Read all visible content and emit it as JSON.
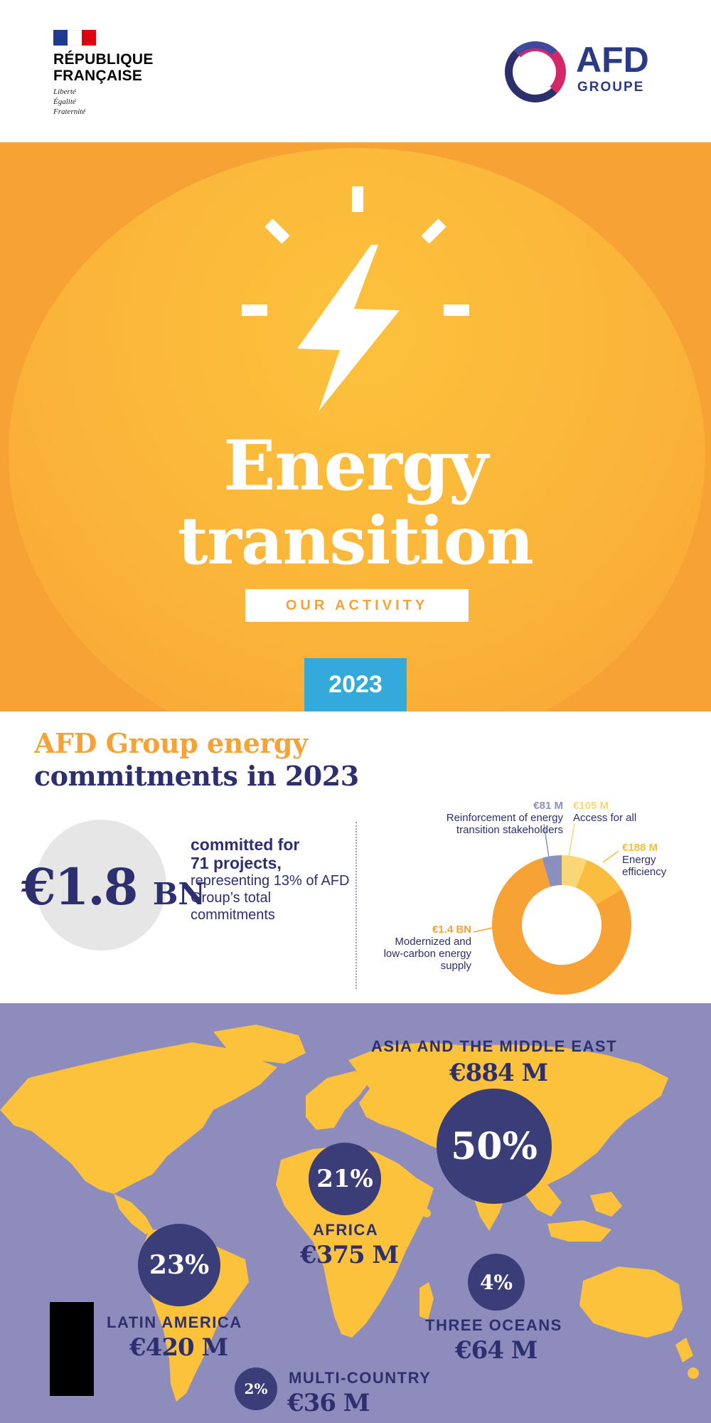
{
  "header": {
    "gov_name_line1": "RÉPUBLIQUE",
    "gov_name_line2": "FRANÇAISE",
    "motto": [
      "Liberté",
      "Égalité",
      "Fraternité"
    ],
    "afd_logo": "AFD",
    "afd_subtitle": "GROUPE"
  },
  "hero": {
    "icon": "lightning-bolt-icon",
    "title_line1": "Energy",
    "title_line2": "transition",
    "subtitle": "OUR ACTIVITY",
    "year": "2023"
  },
  "commitments": {
    "title_line1": "AFD Group energy",
    "title_line2": "commitments in 2023",
    "total_value": "€1.8",
    "total_unit": "BN",
    "desc_bold_1": "committed for",
    "desc_bold_2": "71 projects,",
    "desc_rest": "representing 13% of AFD Group’s total commitments",
    "donut_center_value": "€1.8",
    "donut_center_unit": "BN",
    "breakdown": [
      {
        "value": "€81 M",
        "label": "Reinforcement of energy transition stakeholders",
        "amount_m": 81,
        "color": "#8a8fbf"
      },
      {
        "value": "€105 M",
        "label": "Access for all",
        "amount_m": 105,
        "color": "#f9d776"
      },
      {
        "value": "€188 M",
        "label": "Energy efficiency",
        "amount_m": 188,
        "color": "#fbbd3d"
      },
      {
        "value": "€1.4 BN",
        "label": "Modernized and low-carbon energy supply",
        "amount_m": 1400,
        "color": "#f7a235"
      }
    ]
  },
  "regions": {
    "asia": {
      "name": "ASIA AND THE MIDDLE EAST",
      "value": "€884 M",
      "percent": "50%"
    },
    "africa": {
      "name": "AFRICA",
      "value": "€375 M",
      "percent": "21%"
    },
    "latam": {
      "name": "LATIN AMERICA",
      "value": "€420 M",
      "percent": "23%"
    },
    "oceans": {
      "name": "THREE OCEANS",
      "value": "€64 M",
      "percent": "4%"
    },
    "multi": {
      "name": "MULTI-COUNTRY",
      "value": "€36 M",
      "percent": "2%"
    }
  },
  "colors": {
    "orange": "#f7a235",
    "yellow": "#fcc23c",
    "navy": "#2d2f6e",
    "blue": "#34aadc",
    "map_bg": "#8d8cbd"
  }
}
